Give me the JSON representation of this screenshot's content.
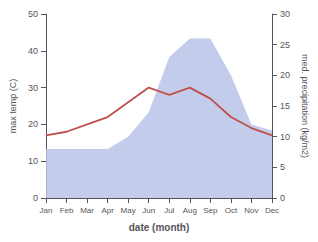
{
  "chart_data": {
    "type": "line",
    "categories": [
      "Jan",
      "Feb",
      "Mar",
      "Apr",
      "May",
      "Jun",
      "Jul",
      "Aug",
      "Sep",
      "Oct",
      "Nov",
      "Dec"
    ],
    "series": [
      {
        "type": "area",
        "color": "#b8c4e8",
        "axis": "y2",
        "values": [
          8,
          8,
          8,
          8,
          10,
          14,
          23,
          26,
          26,
          20,
          12,
          11
        ]
      },
      {
        "type": "line",
        "color": "#c0504d",
        "values": [
          17,
          18,
          20,
          22,
          26,
          30,
          28,
          30,
          27,
          22,
          19,
          17
        ]
      }
    ],
    "xlabel": "date (month)",
    "ylabel": "max temp (C)",
    "y2label": "med. precipitation (kg/m2)",
    "ylim": [
      0,
      50
    ],
    "yticks": [
      0,
      10,
      20,
      30,
      40,
      50
    ],
    "y2lim": [
      0,
      30
    ],
    "y2ticks": [
      0,
      5,
      10,
      15,
      20,
      25,
      30
    ],
    "grid": false
  }
}
